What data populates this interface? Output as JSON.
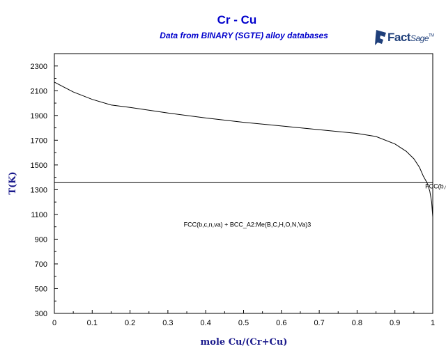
{
  "chart_data": {
    "type": "line",
    "title": "Cr - Cu",
    "subtitle": "Data from BINARY (SGTE) alloy databases",
    "xlabel": "mole Cu/(Cr+Cu)",
    "ylabel": "T(K)",
    "xlim": [
      0,
      1
    ],
    "ylim": [
      300,
      2400
    ],
    "x_ticks": [
      "0",
      "0.1",
      "0.2",
      "0.3",
      "0.4",
      "0.5",
      "0.6",
      "0.7",
      "0.8",
      "0.9",
      "1"
    ],
    "y_ticks": [
      "300",
      "500",
      "700",
      "900",
      "1100",
      "1300",
      "1500",
      "1700",
      "1900",
      "2100",
      "2300"
    ],
    "grid": false,
    "series": [
      {
        "x": [
          0,
          0.05,
          0.1,
          0.15,
          0.2,
          0.3,
          0.4,
          0.5,
          0.6,
          0.7,
          0.8,
          0.85,
          0.9,
          0.93,
          0.95,
          0.965,
          0.975,
          0.985,
          0.992,
          0.997,
          1.0
        ],
        "y": [
          2170,
          2090,
          2030,
          1985,
          1965,
          1920,
          1880,
          1845,
          1815,
          1785,
          1755,
          1730,
          1670,
          1610,
          1550,
          1480,
          1410,
          1355,
          1290,
          1200,
          1080
        ]
      },
      {
        "x": [
          0,
          1
        ],
        "y": [
          1357,
          1357
        ]
      }
    ],
    "annotations": [
      {
        "text": "FCC(b,c,n,va) + BCC_A2:Me(B,C,H,O,N,Va)3",
        "x": 0.51,
        "y": 1000
      },
      {
        "text": "FCC(b,c,n,v",
        "x": 0.98,
        "y": 1310
      }
    ]
  },
  "logo": {
    "word": "Fact",
    "suffix": "Sage",
    "mark": "TM"
  }
}
